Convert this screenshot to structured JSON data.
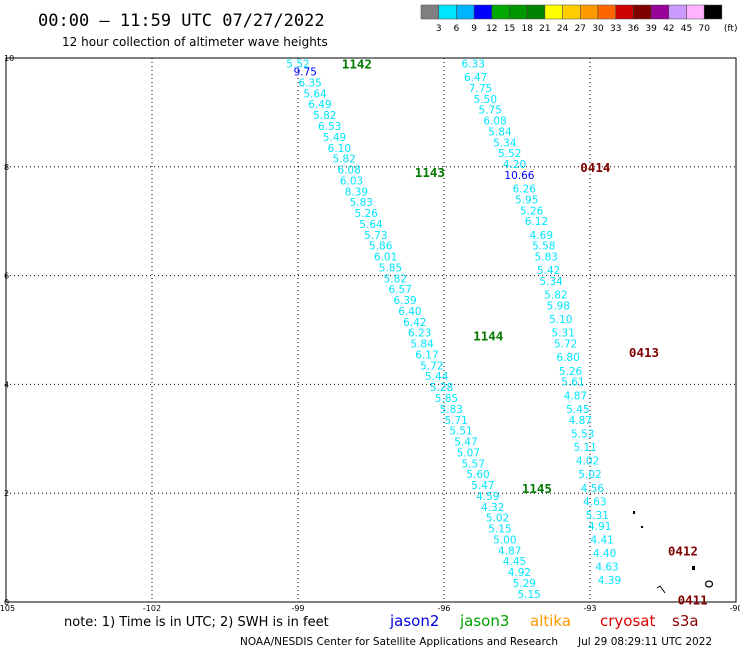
{
  "header": {
    "title": "00:00 – 11:59 UTC 07/27/2022",
    "subtitle": "12 hour collection of altimeter wave heights"
  },
  "legend_scale": {
    "colors": [
      "#7f7f7f",
      "#00e5ff",
      "#00b3ff",
      "#0000ff",
      "#00a800",
      "#009600",
      "#008000",
      "#ffff00",
      "#ffcc00",
      "#ff9900",
      "#ff6600",
      "#cc0000",
      "#800000",
      "#990099",
      "#cc99ff",
      "#ffb3ff",
      "#000000"
    ],
    "labels": [
      "3",
      "6",
      "9",
      "12",
      "15",
      "18",
      "21",
      "24",
      "27",
      "30",
      "33",
      "36",
      "39",
      "42",
      "45",
      "70"
    ],
    "unit": "(ft)"
  },
  "notes": {
    "note": "note: 1) Time is in UTC; 2) SWH is in feet",
    "missions": [
      {
        "name": "jason2",
        "color": "#0000dd"
      },
      {
        "name": "jason3",
        "color": "#00a000"
      },
      {
        "name": "altika",
        "color": "#ff9900"
      },
      {
        "name": "cryosat",
        "color": "#dd0000"
      },
      {
        "name": "s3a",
        "color": "#8b0000"
      }
    ],
    "footer_left": "NOAA/NESDIS Center for Satellite Applications and Research",
    "footer_right": "Jul 29 08:29:11 UTC 2022"
  },
  "chart_data": {
    "type": "scatter",
    "xlim": [
      -105,
      -90
    ],
    "ylim": [
      0,
      10
    ],
    "x_ticks": [
      "-105",
      "-102",
      "-99",
      "-96",
      "-93",
      "-90"
    ],
    "y_ticks": [
      "0",
      "2",
      "4",
      "6",
      "8",
      "10"
    ],
    "grid": true,
    "tracks": [
      {
        "labels": [
          {
            "text": "1142",
            "x": -98.1,
            "y": 9.9
          },
          {
            "text": "1143",
            "x": -96.6,
            "y": 7.9
          },
          {
            "text": "1144",
            "x": -95.4,
            "y": 4.9
          },
          {
            "text": "1145",
            "x": -94.4,
            "y": 2.1
          }
        ],
        "points": [
          {
            "v": "5.52",
            "x": -99.0,
            "y": 9.9,
            "c": "#00e5ff"
          },
          {
            "v": "9.75",
            "x": -98.85,
            "y": 9.75,
            "c": "#0000ff"
          },
          {
            "v": "6.35",
            "x": -98.75,
            "y": 9.55,
            "c": "#00e5ff"
          },
          {
            "v": "5.64",
            "x": -98.65,
            "y": 9.35,
            "c": "#00e5ff"
          },
          {
            "v": "6.49",
            "x": -98.55,
            "y": 9.15,
            "c": "#00e5ff"
          },
          {
            "v": "5.82",
            "x": -98.45,
            "y": 8.95,
            "c": "#00e5ff"
          },
          {
            "v": "6.53",
            "x": -98.35,
            "y": 8.75,
            "c": "#00e5ff"
          },
          {
            "v": "5.49",
            "x": -98.25,
            "y": 8.55,
            "c": "#00e5ff"
          },
          {
            "v": "6.10",
            "x": -98.15,
            "y": 8.35,
            "c": "#00e5ff"
          },
          {
            "v": "5.82",
            "x": -98.05,
            "y": 8.15,
            "c": "#00e5ff"
          },
          {
            "v": "6.08",
            "x": -97.95,
            "y": 7.95,
            "c": "#00e5ff"
          },
          {
            "v": "6.03",
            "x": -97.9,
            "y": 7.75,
            "c": "#00e5ff"
          },
          {
            "v": "8.39",
            "x": -97.8,
            "y": 7.55,
            "c": "#00e5ff"
          },
          {
            "v": "5.83",
            "x": -97.7,
            "y": 7.35,
            "c": "#00e5ff"
          },
          {
            "v": "5.26",
            "x": -97.6,
            "y": 7.15,
            "c": "#00e5ff"
          },
          {
            "v": "5.64",
            "x": -97.5,
            "y": 6.95,
            "c": "#00e5ff"
          },
          {
            "v": "5.73",
            "x": -97.4,
            "y": 6.75,
            "c": "#00e5ff"
          },
          {
            "v": "5.86",
            "x": -97.3,
            "y": 6.55,
            "c": "#00e5ff"
          },
          {
            "v": "6.01",
            "x": -97.2,
            "y": 6.35,
            "c": "#00e5ff"
          },
          {
            "v": "5.85",
            "x": -97.1,
            "y": 6.15,
            "c": "#00e5ff"
          },
          {
            "v": "5.82",
            "x": -97.0,
            "y": 5.95,
            "c": "#00e5ff"
          },
          {
            "v": "6.57",
            "x": -96.9,
            "y": 5.75,
            "c": "#00e5ff"
          },
          {
            "v": "6.39",
            "x": -96.8,
            "y": 5.55,
            "c": "#00e5ff"
          },
          {
            "v": "6.40",
            "x": -96.7,
            "y": 5.35,
            "c": "#00e5ff"
          },
          {
            "v": "6.42",
            "x": -96.6,
            "y": 5.15,
            "c": "#00e5ff"
          },
          {
            "v": "6.23",
            "x": -96.5,
            "y": 4.95,
            "c": "#00e5ff"
          },
          {
            "v": "5.84",
            "x": -96.45,
            "y": 4.75,
            "c": "#00e5ff"
          },
          {
            "v": "6.17",
            "x": -96.35,
            "y": 4.55,
            "c": "#00e5ff"
          },
          {
            "v": "5.72",
            "x": -96.25,
            "y": 4.35,
            "c": "#00e5ff"
          },
          {
            "v": "5.44",
            "x": -96.15,
            "y": 4.15,
            "c": "#00e5ff"
          },
          {
            "v": "5.28",
            "x": -96.05,
            "y": 3.95,
            "c": "#00e5ff"
          },
          {
            "v": "5.85",
            "x": -95.95,
            "y": 3.75,
            "c": "#00e5ff"
          },
          {
            "v": "5.83",
            "x": -95.85,
            "y": 3.55,
            "c": "#00e5ff"
          },
          {
            "v": "5.71",
            "x": -95.75,
            "y": 3.35,
            "c": "#00e5ff"
          },
          {
            "v": "5.51",
            "x": -95.65,
            "y": 3.15,
            "c": "#00e5ff"
          },
          {
            "v": "5.47",
            "x": -95.55,
            "y": 2.95,
            "c": "#00e5ff"
          },
          {
            "v": "5.07",
            "x": -95.5,
            "y": 2.75,
            "c": "#00e5ff"
          },
          {
            "v": "5.57",
            "x": -95.4,
            "y": 2.55,
            "c": "#00e5ff"
          },
          {
            "v": "5.60",
            "x": -95.3,
            "y": 2.35,
            "c": "#00e5ff"
          },
          {
            "v": "5.47",
            "x": -95.2,
            "y": 2.15,
            "c": "#00e5ff"
          },
          {
            "v": "4.59",
            "x": -95.1,
            "y": 1.95,
            "c": "#00e5ff"
          },
          {
            "v": "4.32",
            "x": -95.0,
            "y": 1.75,
            "c": "#00e5ff"
          },
          {
            "v": "5.02",
            "x": -94.9,
            "y": 1.55,
            "c": "#00e5ff"
          },
          {
            "v": "5.15",
            "x": -94.85,
            "y": 1.35,
            "c": "#00e5ff"
          },
          {
            "v": "5.00",
            "x": -94.75,
            "y": 1.15,
            "c": "#00e5ff"
          },
          {
            "v": "4.87",
            "x": -94.65,
            "y": 0.95,
            "c": "#00e5ff"
          },
          {
            "v": "4.45",
            "x": -94.55,
            "y": 0.75,
            "c": "#00e5ff"
          },
          {
            "v": "4.92",
            "x": -94.45,
            "y": 0.55,
            "c": "#00e5ff"
          },
          {
            "v": "5.29",
            "x": -94.35,
            "y": 0.35,
            "c": "#00e5ff"
          },
          {
            "v": "5.15",
            "x": -94.25,
            "y": 0.15,
            "c": "#00e5ff"
          }
        ]
      },
      {
        "labels": [
          {
            "text": "0414",
            "x": -93.2,
            "y": 8.0
          },
          {
            "text": "0413",
            "x": -92.2,
            "y": 4.6
          },
          {
            "text": "0412",
            "x": -91.4,
            "y": 0.95
          },
          {
            "text": "0411",
            "x": -91.2,
            "y": 0.05
          }
        ],
        "points": [
          {
            "v": "6.33",
            "x": -95.4,
            "y": 9.9,
            "c": "#00e5ff"
          },
          {
            "v": "6.47",
            "x": -95.35,
            "y": 9.65,
            "c": "#00e5ff"
          },
          {
            "v": "7.75",
            "x": -95.25,
            "y": 9.45,
            "c": "#00e5ff"
          },
          {
            "v": "5.50",
            "x": -95.15,
            "y": 9.25,
            "c": "#00e5ff"
          },
          {
            "v": "5.75",
            "x": -95.05,
            "y": 9.05,
            "c": "#00e5ff"
          },
          {
            "v": "6.08",
            "x": -94.95,
            "y": 8.85,
            "c": "#00e5ff"
          },
          {
            "v": "5.84",
            "x": -94.85,
            "y": 8.65,
            "c": "#00e5ff"
          },
          {
            "v": "5.34",
            "x": -94.75,
            "y": 8.45,
            "c": "#00e5ff"
          },
          {
            "v": "5.52",
            "x": -94.65,
            "y": 8.25,
            "c": "#00e5ff"
          },
          {
            "v": "4.20",
            "x": -94.55,
            "y": 8.05,
            "c": "#00e5ff"
          },
          {
            "v": "10.66",
            "x": -94.45,
            "y": 7.85,
            "c": "#0000ff"
          },
          {
            "v": "6.26",
            "x": -94.35,
            "y": 7.6,
            "c": "#00e5ff"
          },
          {
            "v": "5.95",
            "x": -94.3,
            "y": 7.4,
            "c": "#00e5ff"
          },
          {
            "v": "5.26",
            "x": -94.2,
            "y": 7.2,
            "c": "#00e5ff"
          },
          {
            "v": "6.12",
            "x": -94.1,
            "y": 7.0,
            "c": "#00e5ff"
          },
          {
            "v": "4.69",
            "x": -94.0,
            "y": 6.75,
            "c": "#00e5ff"
          },
          {
            "v": "5.58",
            "x": -93.95,
            "y": 6.55,
            "c": "#00e5ff"
          },
          {
            "v": "5.83",
            "x": -93.9,
            "y": 6.35,
            "c": "#00e5ff"
          },
          {
            "v": "5.42",
            "x": -93.85,
            "y": 6.1,
            "c": "#00e5ff"
          },
          {
            "v": "5.34",
            "x": -93.8,
            "y": 5.9,
            "c": "#00e5ff"
          },
          {
            "v": "5.82",
            "x": -93.7,
            "y": 5.65,
            "c": "#00e5ff"
          },
          {
            "v": "5.98",
            "x": -93.65,
            "y": 5.45,
            "c": "#00e5ff"
          },
          {
            "v": "5.10",
            "x": -93.6,
            "y": 5.2,
            "c": "#00e5ff"
          },
          {
            "v": "5.31",
            "x": -93.55,
            "y": 4.95,
            "c": "#00e5ff"
          },
          {
            "v": "5.72",
            "x": -93.5,
            "y": 4.75,
            "c": "#00e5ff"
          },
          {
            "v": "6.80",
            "x": -93.45,
            "y": 4.5,
            "c": "#00e5ff"
          },
          {
            "v": "5.26",
            "x": -93.4,
            "y": 4.25,
            "c": "#00e5ff"
          },
          {
            "v": "5.61",
            "x": -93.35,
            "y": 4.05,
            "c": "#00e5ff"
          },
          {
            "v": "4.87",
            "x": -93.3,
            "y": 3.8,
            "c": "#00e5ff"
          },
          {
            "v": "5.45",
            "x": -93.25,
            "y": 3.55,
            "c": "#00e5ff"
          },
          {
            "v": "4.87",
            "x": -93.2,
            "y": 3.35,
            "c": "#00e5ff"
          },
          {
            "v": "5.53",
            "x": -93.15,
            "y": 3.1,
            "c": "#00e5ff"
          },
          {
            "v": "5.11",
            "x": -93.1,
            "y": 2.85,
            "c": "#00e5ff"
          },
          {
            "v": "4.02",
            "x": -93.05,
            "y": 2.6,
            "c": "#00e5ff"
          },
          {
            "v": "5.02",
            "x": -93.0,
            "y": 2.35,
            "c": "#00e5ff"
          },
          {
            "v": "4.56",
            "x": -92.95,
            "y": 2.1,
            "c": "#00e5ff"
          },
          {
            "v": "4.63",
            "x": -92.9,
            "y": 1.85,
            "c": "#00e5ff"
          },
          {
            "v": "5.31",
            "x": -92.85,
            "y": 1.6,
            "c": "#00e5ff"
          },
          {
            "v": "4.91",
            "x": -92.8,
            "y": 1.4,
            "c": "#00e5ff"
          },
          {
            "v": "4.41",
            "x": -92.75,
            "y": 1.15,
            "c": "#00e5ff"
          },
          {
            "v": "4.40",
            "x": -92.7,
            "y": 0.9,
            "c": "#00e5ff"
          },
          {
            "v": "4.63",
            "x": -92.65,
            "y": 0.65,
            "c": "#00e5ff"
          },
          {
            "v": "4.39",
            "x": -92.6,
            "y": 0.4,
            "c": "#00e5ff"
          }
        ]
      }
    ]
  }
}
